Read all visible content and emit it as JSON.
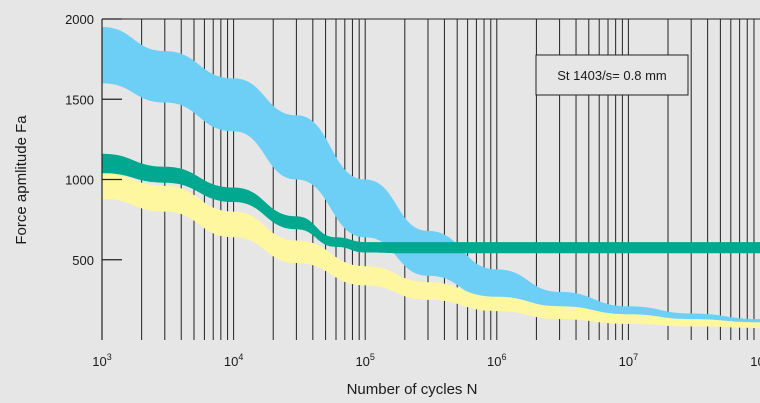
{
  "chart_data": {
    "type": "area",
    "xlabel": "Number of cycles N",
    "ylabel": "Force apmlitude Fa",
    "x_scale": "log",
    "xlim": [
      1000,
      100000000
    ],
    "ylim": [
      0,
      2000
    ],
    "x_ticks": [
      {
        "base": "10",
        "exp": "3",
        "value": 1000
      },
      {
        "base": "10",
        "exp": "4",
        "value": 10000
      },
      {
        "base": "10",
        "exp": "5",
        "value": 100000
      },
      {
        "base": "10",
        "exp": "6",
        "value": 1000000
      },
      {
        "base": "10",
        "exp": "7",
        "value": 10000000
      },
      {
        "base": "10",
        "exp": "8",
        "value": 100000000
      }
    ],
    "y_ticks": [
      {
        "label": "500",
        "value": 500
      },
      {
        "label": "1000",
        "value": 1000
      },
      {
        "label": "1500",
        "value": 1500
      },
      {
        "label": "2000",
        "value": 2000
      }
    ],
    "grid": "vertical log gridlines",
    "annotation": "St 1403/s= 0.8 mm",
    "bands": [
      {
        "color": "#6dcff6",
        "x": [
          1000,
          3000,
          10000,
          30000,
          100000,
          300000,
          1000000,
          3000000,
          10000000,
          30000000,
          100000000
        ],
        "upper": [
          1950,
          1800,
          1630,
          1400,
          1000,
          680,
          440,
          300,
          210,
          165,
          130
        ],
        "lower": [
          1600,
          1480,
          1300,
          1000,
          640,
          400,
          240,
          160,
          120,
          105,
          95
        ]
      },
      {
        "color": "#fff7a0",
        "x": [
          1000,
          3000,
          10000,
          30000,
          100000,
          300000,
          1000000,
          3000000,
          10000000,
          30000000,
          100000000
        ],
        "upper": [
          1040,
          960,
          800,
          620,
          460,
          360,
          270,
          210,
          160,
          130,
          110
        ],
        "lower": [
          880,
          800,
          640,
          480,
          340,
          250,
          180,
          130,
          100,
          85,
          75
        ]
      },
      {
        "color": "#00a88f",
        "x": [
          1000,
          3000,
          10000,
          30000,
          60000,
          100000,
          200000,
          1000000,
          10000000,
          100000000
        ],
        "upper": [
          1160,
          1080,
          950,
          770,
          640,
          610,
          610,
          610,
          610,
          610
        ],
        "lower": [
          1040,
          980,
          860,
          690,
          580,
          545,
          540,
          540,
          540,
          540
        ]
      }
    ]
  }
}
